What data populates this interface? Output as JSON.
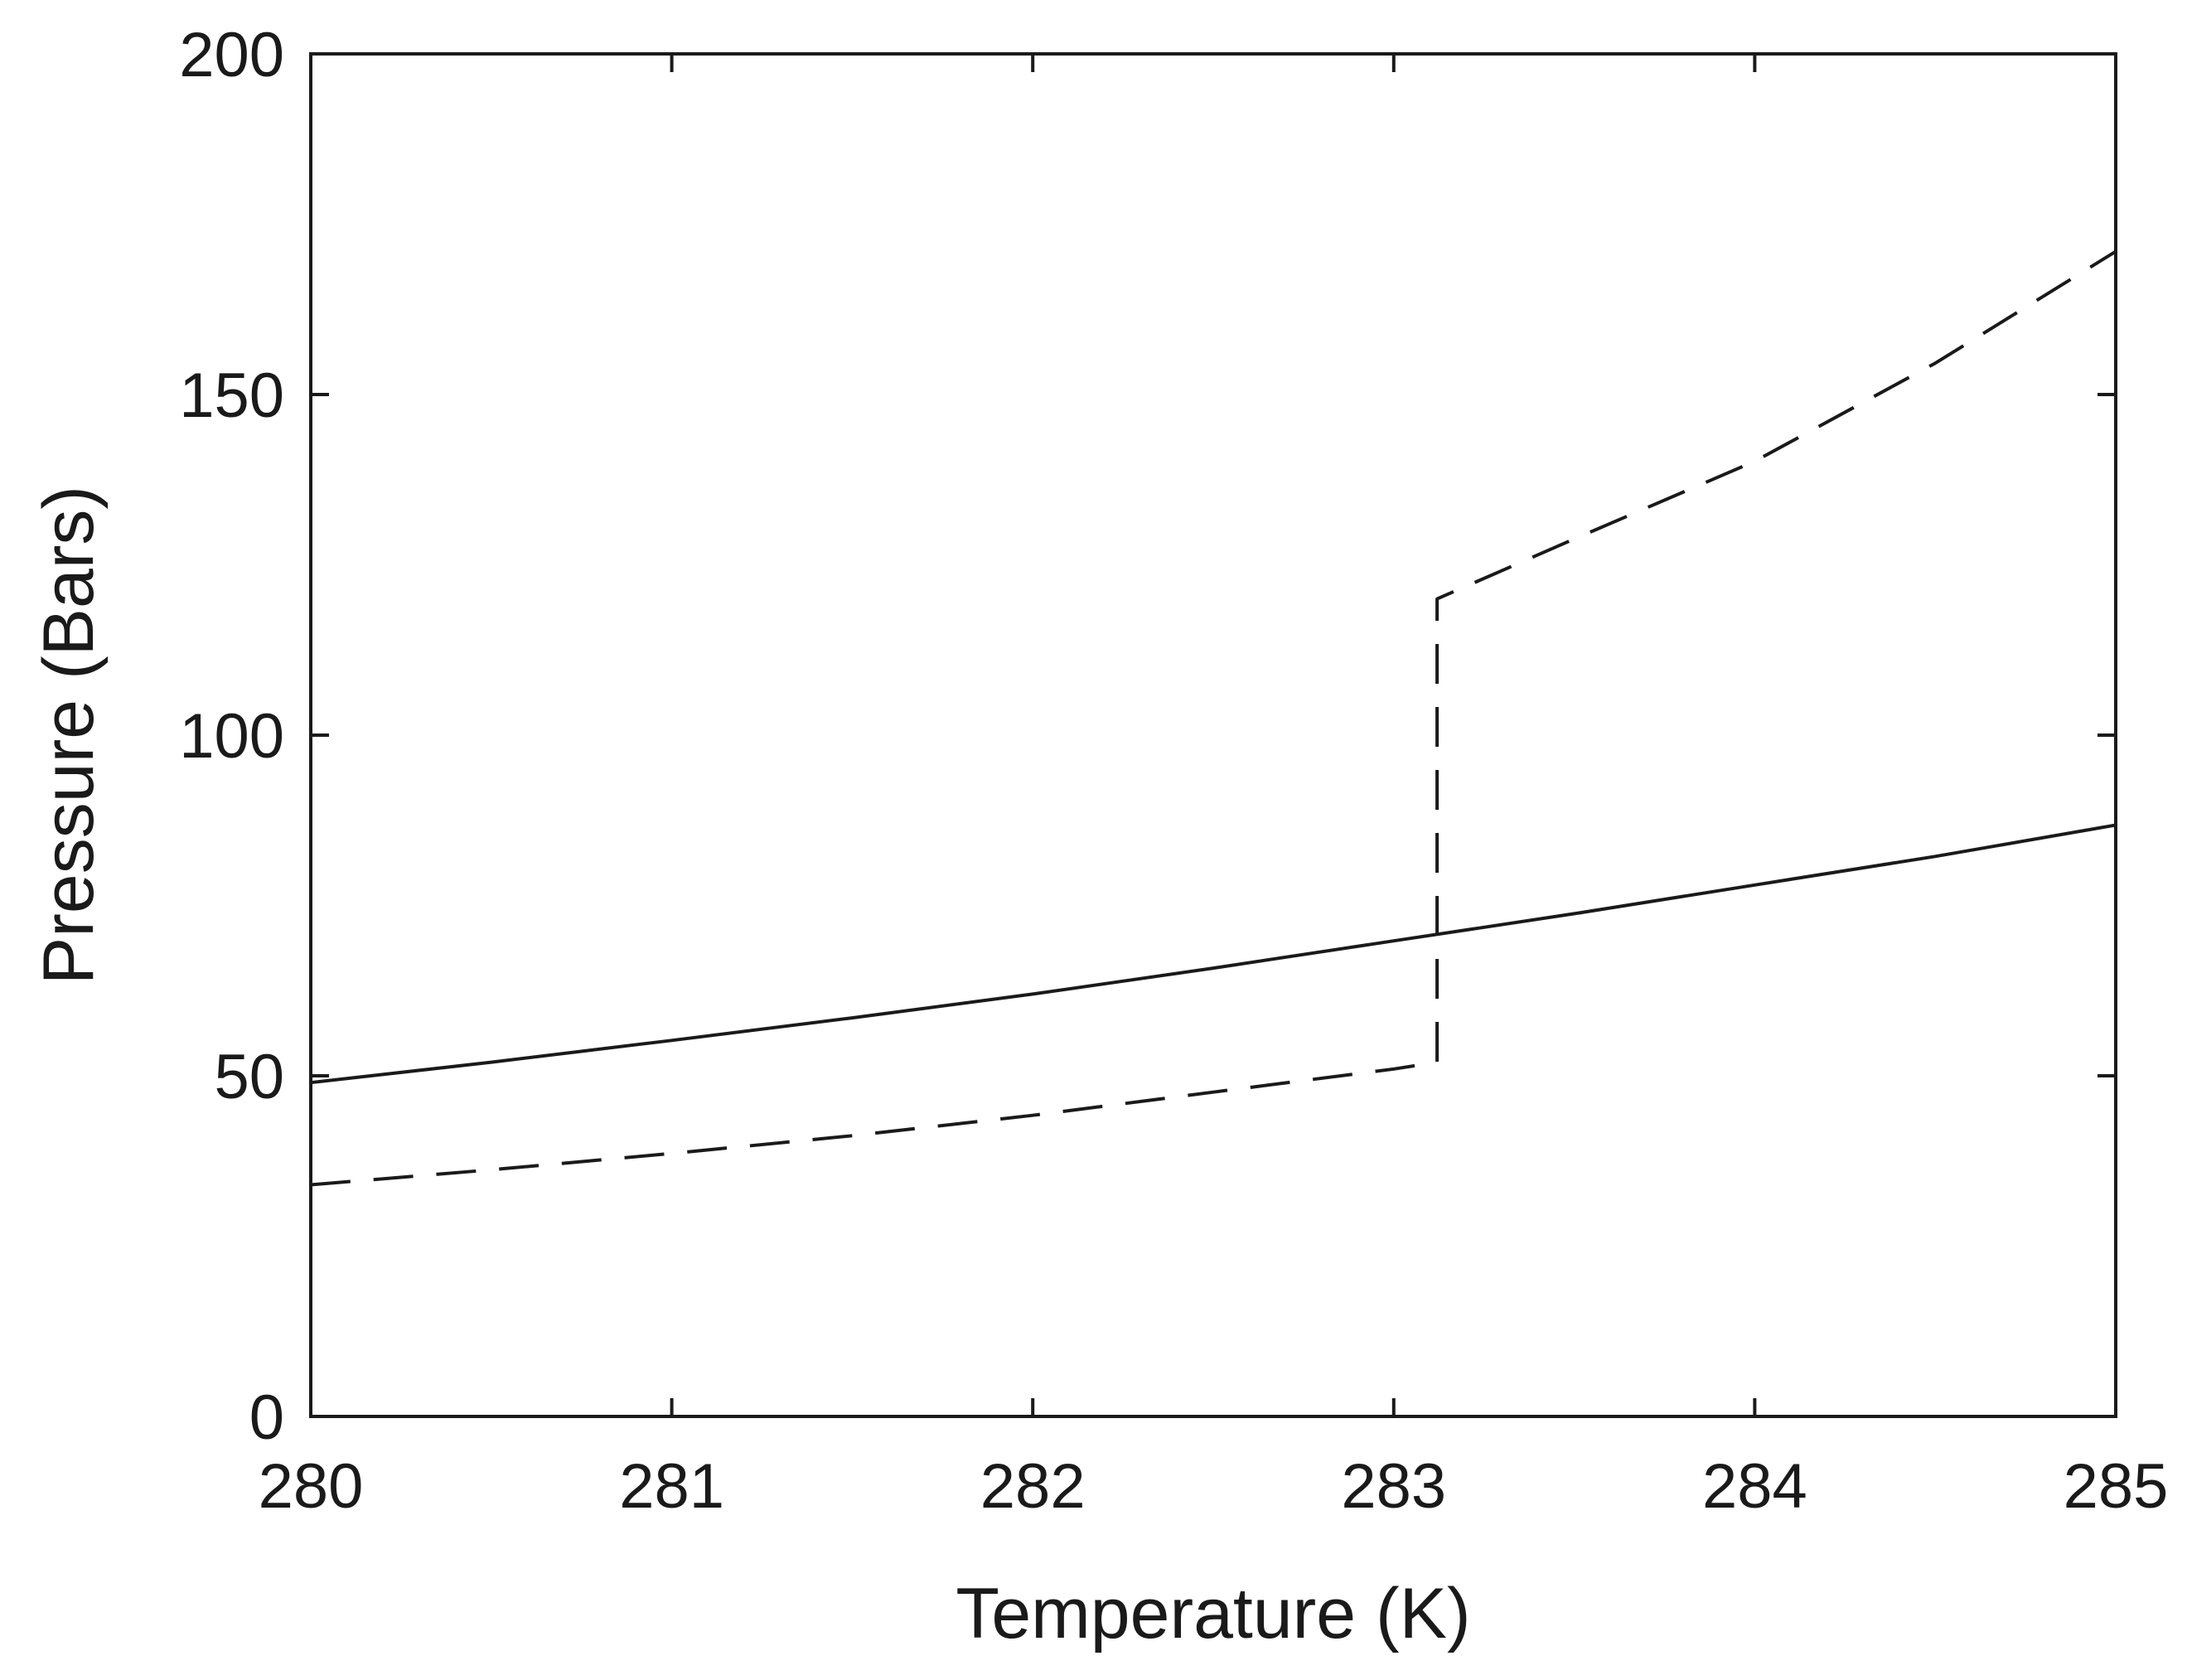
{
  "chart_data": {
    "type": "line",
    "title": "",
    "xlabel": "Temperature (K)",
    "ylabel": "Pressure (Bars)",
    "xlim": [
      280,
      285
    ],
    "ylim": [
      0,
      200
    ],
    "x_ticks": [
      "280",
      "281",
      "282",
      "283",
      "284",
      "285"
    ],
    "y_ticks": [
      "0",
      "50",
      "100",
      "150",
      "200"
    ],
    "grid": false,
    "legend": "none",
    "series": [
      {
        "style": "solid",
        "color": "#1a1a1a",
        "x": [
          280.0,
          280.5,
          281.0,
          281.5,
          282.0,
          282.5,
          283.0,
          283.5,
          284.0,
          284.5,
          285.0
        ],
        "y": [
          49.0,
          52.0,
          55.2,
          58.5,
          62.0,
          65.8,
          69.8,
          73.8,
          78.0,
          82.2,
          86.8
        ]
      },
      {
        "style": "dashed",
        "color": "#1a1a1a",
        "x": [
          280.0,
          280.5,
          281.0,
          281.5,
          282.0,
          282.5,
          283.0,
          283.12,
          283.12,
          283.5,
          284.0,
          284.5,
          285.0
        ],
        "y": [
          34.0,
          36.2,
          38.6,
          41.2,
          44.2,
          47.6,
          51.0,
          52.0,
          120.0,
          128.8,
          140.2,
          154.6,
          171.0
        ]
      }
    ]
  }
}
